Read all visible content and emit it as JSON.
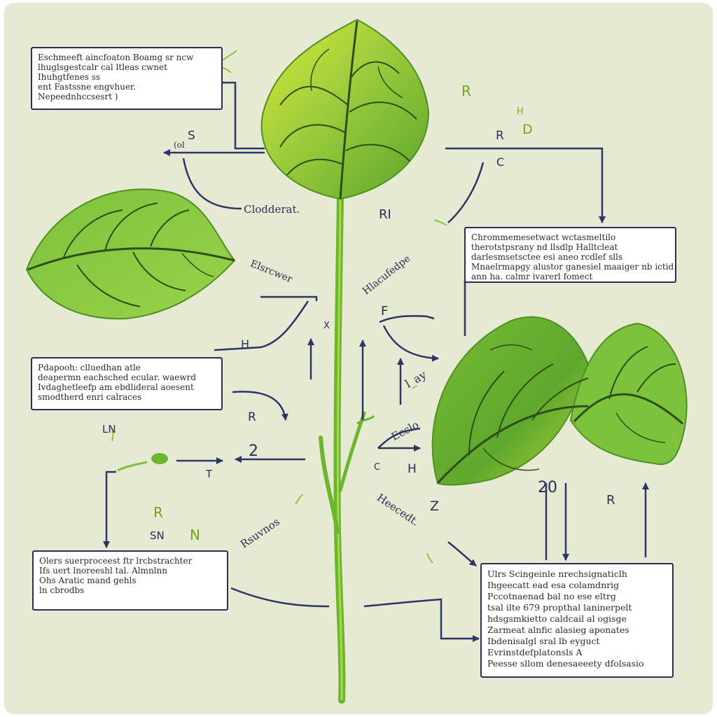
{
  "colors": {
    "background": "#e6ead2",
    "leaf_light": "#c6e23a",
    "leaf_mid": "#8cc63f",
    "leaf_dark": "#4f9a2a",
    "vein": "#2f5d1a",
    "arrow": "#2b3566",
    "box_border": "#2b2f55"
  },
  "boxes": {
    "top_left": [
      "Eschmeeft aincfoaton Boamg sr ncw",
      "lhuglsgestcalr cal ltleas cwnet",
      "Ihuhgtfenes ss",
      "ent Fastssne engvhuer.",
      "Nepeednhccsesrt )"
    ],
    "mid_right": [
      "Chrommemesetwact wctasmeltilo",
      "therotstpsrany nd llsdlp Halltcleat",
      "darlesmsetsctee esi aneo rcdlef slls",
      "Mnaelrmapgy alustor ganesiel maaiger nb ictid",
      "ann ha. calmr ivarerl fomect"
    ],
    "mid_left": [
      "Pdapooh: clluedhan atle",
      "deapermn eachsched ecular. waewrd",
      "Ivdaghetleefp am ebdlideral aoesent",
      "smodtherd enri calraces"
    ],
    "bottom_left": [
      "Olers suerproceest ftr lrcbstrachter",
      "Ifs uert lnoreeshl tal. Almnlnn",
      "Ohs    Aratic mand gehls",
      "ln cbrodbs"
    ],
    "bottom_right": [
      "Ulrs Scingeinle nrechsignaticlh",
      "Ihgeecatt ead esa colamdnrig",
      "Pccotnaenad bal no ese eltrg",
      "tsal ilte 679 propthal laninerpelt",
      "hdsgsmkietto caldcail al ogisge",
      "Zarmeat alnfic alasieg aponates",
      "Ibdenisalgl sral lb eyguct",
      "Evrinstdefplatonsls A",
      "Peesse sllom denesaeeety dfolsasio"
    ]
  },
  "labels": {
    "s_top": "S",
    "at_top": "(ol",
    "r_green": "R",
    "h_green": "H",
    "d_green": "D",
    "r_right": "R",
    "c_right": "C",
    "ri_center": "RI",
    "cloccrat": "Clodderat.",
    "elsrcw": "Elsrcwer",
    "haweudpe": "Hlacufedpe",
    "h_left": "H",
    "x_stem": "X",
    "f_center": "F",
    "l_curl": "l_ay",
    "ecclo": "Ecclo",
    "h_right": "H",
    "c_small": "C",
    "r_mid": "R",
    "ln": "LN",
    "two": "2",
    "t": "T",
    "r_green_low": "R",
    "sn": "SN",
    "n_green": "N",
    "rsuvnos": "Rsuvnos",
    "z": "Z",
    "hnecd": "Heecedt.",
    "twenty": "20",
    "r_low_right": "R"
  }
}
